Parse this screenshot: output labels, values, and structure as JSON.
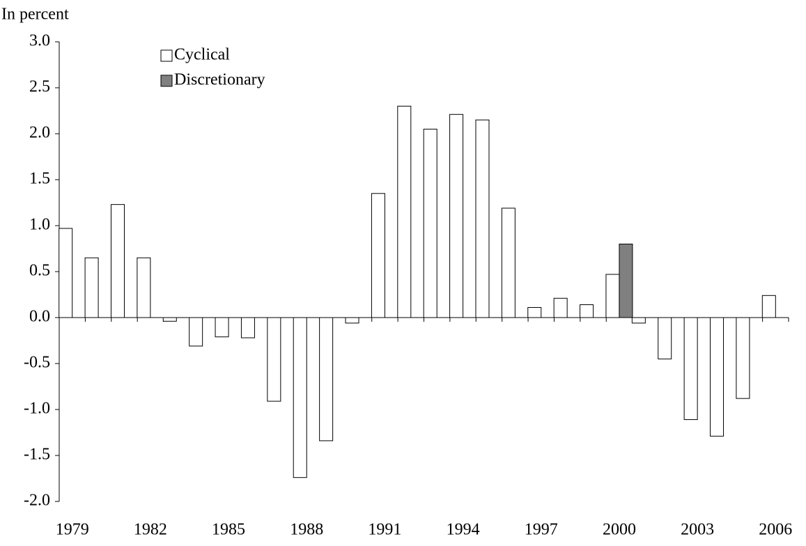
{
  "chart_data": {
    "type": "bar",
    "y_label": "In percent",
    "categories": [
      "1979",
      null,
      null,
      "1982",
      null,
      null,
      "1985",
      null,
      null,
      "1988",
      null,
      null,
      "1991",
      null,
      null,
      "1994",
      null,
      null,
      "1997",
      null,
      null,
      "2000",
      null,
      null,
      "2003",
      null,
      null,
      "2006"
    ],
    "series": [
      {
        "name": "Cyclical",
        "color": "#ffffff",
        "values": [
          0.97,
          0.65,
          1.23,
          0.65,
          -0.04,
          -0.31,
          -0.21,
          -0.22,
          -0.91,
          -1.74,
          -1.34,
          -0.06,
          1.35,
          2.3,
          2.05,
          2.21,
          2.15,
          1.19,
          0.11,
          0.21,
          0.14,
          0.47,
          -0.06,
          -0.45,
          -1.11,
          -1.29,
          -0.88,
          0.24
        ]
      },
      {
        "name": "Discretionary",
        "color": "#808080",
        "values": [
          null,
          null,
          null,
          null,
          null,
          null,
          null,
          null,
          null,
          null,
          null,
          null,
          null,
          null,
          null,
          null,
          null,
          null,
          null,
          null,
          null,
          0.8,
          null,
          null,
          null,
          null,
          null,
          null
        ]
      }
    ],
    "ylim": [
      -2,
      3
    ],
    "yticks": [
      {
        "value": -2,
        "label": "-2.0"
      },
      {
        "value": -1.5,
        "label": "-1.5"
      },
      {
        "value": -1,
        "label": "-1.0"
      },
      {
        "value": -0.5,
        "label": "-0.5"
      },
      {
        "value": 0,
        "label": "0.0"
      },
      {
        "value": 0.5,
        "label": "0.5"
      },
      {
        "value": 1,
        "label": "1.0"
      },
      {
        "value": 1.5,
        "label": "1.5"
      },
      {
        "value": 2,
        "label": "2.0"
      },
      {
        "value": 2.5,
        "label": "2.5"
      },
      {
        "value": 3,
        "label": "3.0"
      }
    ],
    "grid": false
  }
}
